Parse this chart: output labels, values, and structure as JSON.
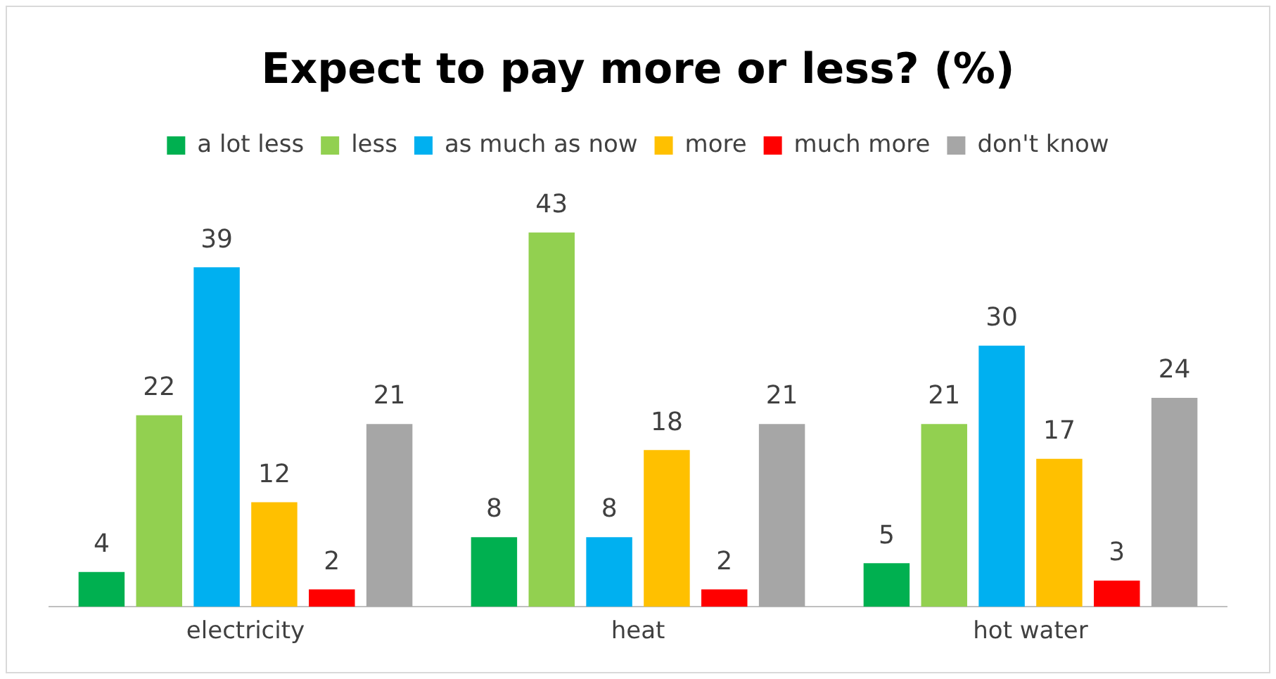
{
  "chart_data": {
    "type": "bar",
    "title": "Expect to pay more or less? (%)",
    "categories": [
      "electricity",
      "heat",
      "hot water"
    ],
    "series": [
      {
        "name": "a lot less",
        "color": "#00b050",
        "values": [
          4,
          8,
          5
        ]
      },
      {
        "name": "less",
        "color": "#92d050",
        "values": [
          22,
          43,
          21
        ]
      },
      {
        "name": "as much as now",
        "color": "#00b0f0",
        "values": [
          39,
          8,
          30
        ]
      },
      {
        "name": "more",
        "color": "#ffc000",
        "values": [
          12,
          18,
          17
        ]
      },
      {
        "name": "much more",
        "color": "#ff0000",
        "values": [
          2,
          2,
          3
        ]
      },
      {
        "name": "don't know",
        "color": "#a6a6a6",
        "values": [
          21,
          21,
          24
        ]
      }
    ],
    "data_labels": true,
    "legend": "top",
    "grid": false,
    "tick_labels": "x"
  }
}
